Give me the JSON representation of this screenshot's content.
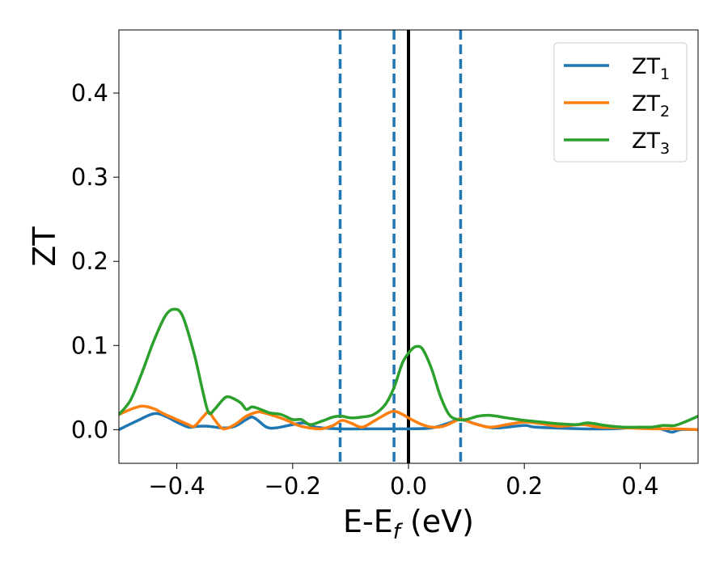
{
  "chart_data": {
    "type": "line",
    "title": "",
    "xlabel": {
      "main": "E-E",
      "sub": "f",
      "unit": " (eV)"
    },
    "ylabel": "ZT",
    "xlim": [
      -0.5,
      0.5
    ],
    "ylim": [
      -0.04,
      0.475
    ],
    "xticks": [
      -0.4,
      -0.2,
      0.0,
      0.2,
      0.4
    ],
    "xtick_labels": [
      "−0.4",
      "−0.2",
      "0.0",
      "0.2",
      "0.4"
    ],
    "yticks": [
      0.0,
      0.1,
      0.2,
      0.3,
      0.4
    ],
    "ytick_labels": [
      "0.0",
      "0.1",
      "0.2",
      "0.3",
      "0.4"
    ],
    "grid": false,
    "legend_position": "top-right",
    "vlines": [
      {
        "x": -0.118,
        "style": "dashed",
        "color": "#1f77b4"
      },
      {
        "x": -0.025,
        "style": "dashed",
        "color": "#1f77b4"
      },
      {
        "x": 0.0,
        "style": "solid",
        "color": "#000000"
      },
      {
        "x": 0.09,
        "style": "dashed",
        "color": "#1f77b4"
      }
    ],
    "series": [
      {
        "name": "ZT",
        "sub": "1",
        "color": "#1f77b4",
        "points": [
          [
            -0.5,
            0.0
          ],
          [
            -0.47,
            0.01
          ],
          [
            -0.44,
            0.019
          ],
          [
            -0.42,
            0.016
          ],
          [
            -0.4,
            0.009
          ],
          [
            -0.38,
            0.003
          ],
          [
            -0.365,
            0.004
          ],
          [
            -0.345,
            0.004
          ],
          [
            -0.32,
            0.002
          ],
          [
            -0.3,
            0.004
          ],
          [
            -0.28,
            0.012
          ],
          [
            -0.27,
            0.015
          ],
          [
            -0.26,
            0.011
          ],
          [
            -0.245,
            0.003
          ],
          [
            -0.23,
            0.002
          ],
          [
            -0.2,
            0.006
          ],
          [
            -0.18,
            0.008
          ],
          [
            -0.16,
            0.003
          ],
          [
            -0.12,
            0.001
          ],
          [
            -0.06,
            0.001
          ],
          [
            0.0,
            0.001
          ],
          [
            0.04,
            0.002
          ],
          [
            0.07,
            0.008
          ],
          [
            0.09,
            0.012
          ],
          [
            0.12,
            0.006
          ],
          [
            0.15,
            0.002
          ],
          [
            0.2,
            0.005
          ],
          [
            0.22,
            0.003
          ],
          [
            0.3,
            0.001
          ],
          [
            0.35,
            0.001
          ],
          [
            0.38,
            0.002
          ],
          [
            0.42,
            0.003
          ],
          [
            0.44,
            0.0
          ],
          [
            0.455,
            -0.003
          ],
          [
            0.47,
            0.0
          ],
          [
            0.5,
            0.0
          ]
        ]
      },
      {
        "name": "ZT",
        "sub": "2",
        "color": "#ff7f0e",
        "points": [
          [
            -0.5,
            0.018
          ],
          [
            -0.48,
            0.024
          ],
          [
            -0.46,
            0.028
          ],
          [
            -0.44,
            0.025
          ],
          [
            -0.42,
            0.018
          ],
          [
            -0.4,
            0.012
          ],
          [
            -0.38,
            0.006
          ],
          [
            -0.37,
            0.004
          ],
          [
            -0.355,
            0.015
          ],
          [
            -0.345,
            0.021
          ],
          [
            -0.335,
            0.012
          ],
          [
            -0.32,
            0.001
          ],
          [
            -0.3,
            0.006
          ],
          [
            -0.28,
            0.016
          ],
          [
            -0.26,
            0.021
          ],
          [
            -0.25,
            0.02
          ],
          [
            -0.23,
            0.016
          ],
          [
            -0.21,
            0.011
          ],
          [
            -0.19,
            0.005
          ],
          [
            -0.17,
            0.002
          ],
          [
            -0.15,
            0.001
          ],
          [
            -0.13,
            0.005
          ],
          [
            -0.115,
            0.011
          ],
          [
            -0.1,
            0.008
          ],
          [
            -0.08,
            0.003
          ],
          [
            -0.06,
            0.01
          ],
          [
            -0.04,
            0.018
          ],
          [
            -0.025,
            0.022
          ],
          [
            -0.01,
            0.018
          ],
          [
            0.0,
            0.014
          ],
          [
            0.02,
            0.007
          ],
          [
            0.04,
            0.003
          ],
          [
            0.06,
            0.004
          ],
          [
            0.08,
            0.01
          ],
          [
            0.09,
            0.013
          ],
          [
            0.11,
            0.008
          ],
          [
            0.14,
            0.003
          ],
          [
            0.17,
            0.006
          ],
          [
            0.2,
            0.009
          ],
          [
            0.23,
            0.007
          ],
          [
            0.26,
            0.004
          ],
          [
            0.3,
            0.006
          ],
          [
            0.33,
            0.003
          ],
          [
            0.38,
            0.002
          ],
          [
            0.42,
            0.001
          ],
          [
            0.46,
            0.001
          ],
          [
            0.5,
            0.0
          ]
        ]
      },
      {
        "name": "ZT",
        "sub": "3",
        "color": "#2ca02c",
        "points": [
          [
            -0.5,
            0.018
          ],
          [
            -0.48,
            0.035
          ],
          [
            -0.46,
            0.068
          ],
          [
            -0.44,
            0.105
          ],
          [
            -0.42,
            0.135
          ],
          [
            -0.405,
            0.143
          ],
          [
            -0.39,
            0.135
          ],
          [
            -0.37,
            0.09
          ],
          [
            -0.355,
            0.045
          ],
          [
            -0.345,
            0.02
          ],
          [
            -0.335,
            0.024
          ],
          [
            -0.32,
            0.036
          ],
          [
            -0.31,
            0.039
          ],
          [
            -0.29,
            0.032
          ],
          [
            -0.28,
            0.024
          ],
          [
            -0.27,
            0.027
          ],
          [
            -0.255,
            0.024
          ],
          [
            -0.24,
            0.02
          ],
          [
            -0.22,
            0.018
          ],
          [
            -0.2,
            0.012
          ],
          [
            -0.185,
            0.012
          ],
          [
            -0.17,
            0.006
          ],
          [
            -0.15,
            0.01
          ],
          [
            -0.13,
            0.015
          ],
          [
            -0.115,
            0.016
          ],
          [
            -0.1,
            0.014
          ],
          [
            -0.08,
            0.015
          ],
          [
            -0.06,
            0.018
          ],
          [
            -0.04,
            0.03
          ],
          [
            -0.025,
            0.05
          ],
          [
            -0.01,
            0.08
          ],
          [
            0.005,
            0.095
          ],
          [
            0.015,
            0.099
          ],
          [
            0.025,
            0.095
          ],
          [
            0.04,
            0.072
          ],
          [
            0.055,
            0.04
          ],
          [
            0.07,
            0.018
          ],
          [
            0.085,
            0.012
          ],
          [
            0.1,
            0.012
          ],
          [
            0.12,
            0.016
          ],
          [
            0.14,
            0.017
          ],
          [
            0.17,
            0.014
          ],
          [
            0.2,
            0.011
          ],
          [
            0.23,
            0.009
          ],
          [
            0.26,
            0.007
          ],
          [
            0.29,
            0.006
          ],
          [
            0.31,
            0.008
          ],
          [
            0.34,
            0.005
          ],
          [
            0.37,
            0.003
          ],
          [
            0.4,
            0.003
          ],
          [
            0.42,
            0.003
          ],
          [
            0.44,
            0.005
          ],
          [
            0.46,
            0.005
          ],
          [
            0.48,
            0.01
          ],
          [
            0.5,
            0.016
          ]
        ]
      }
    ]
  }
}
